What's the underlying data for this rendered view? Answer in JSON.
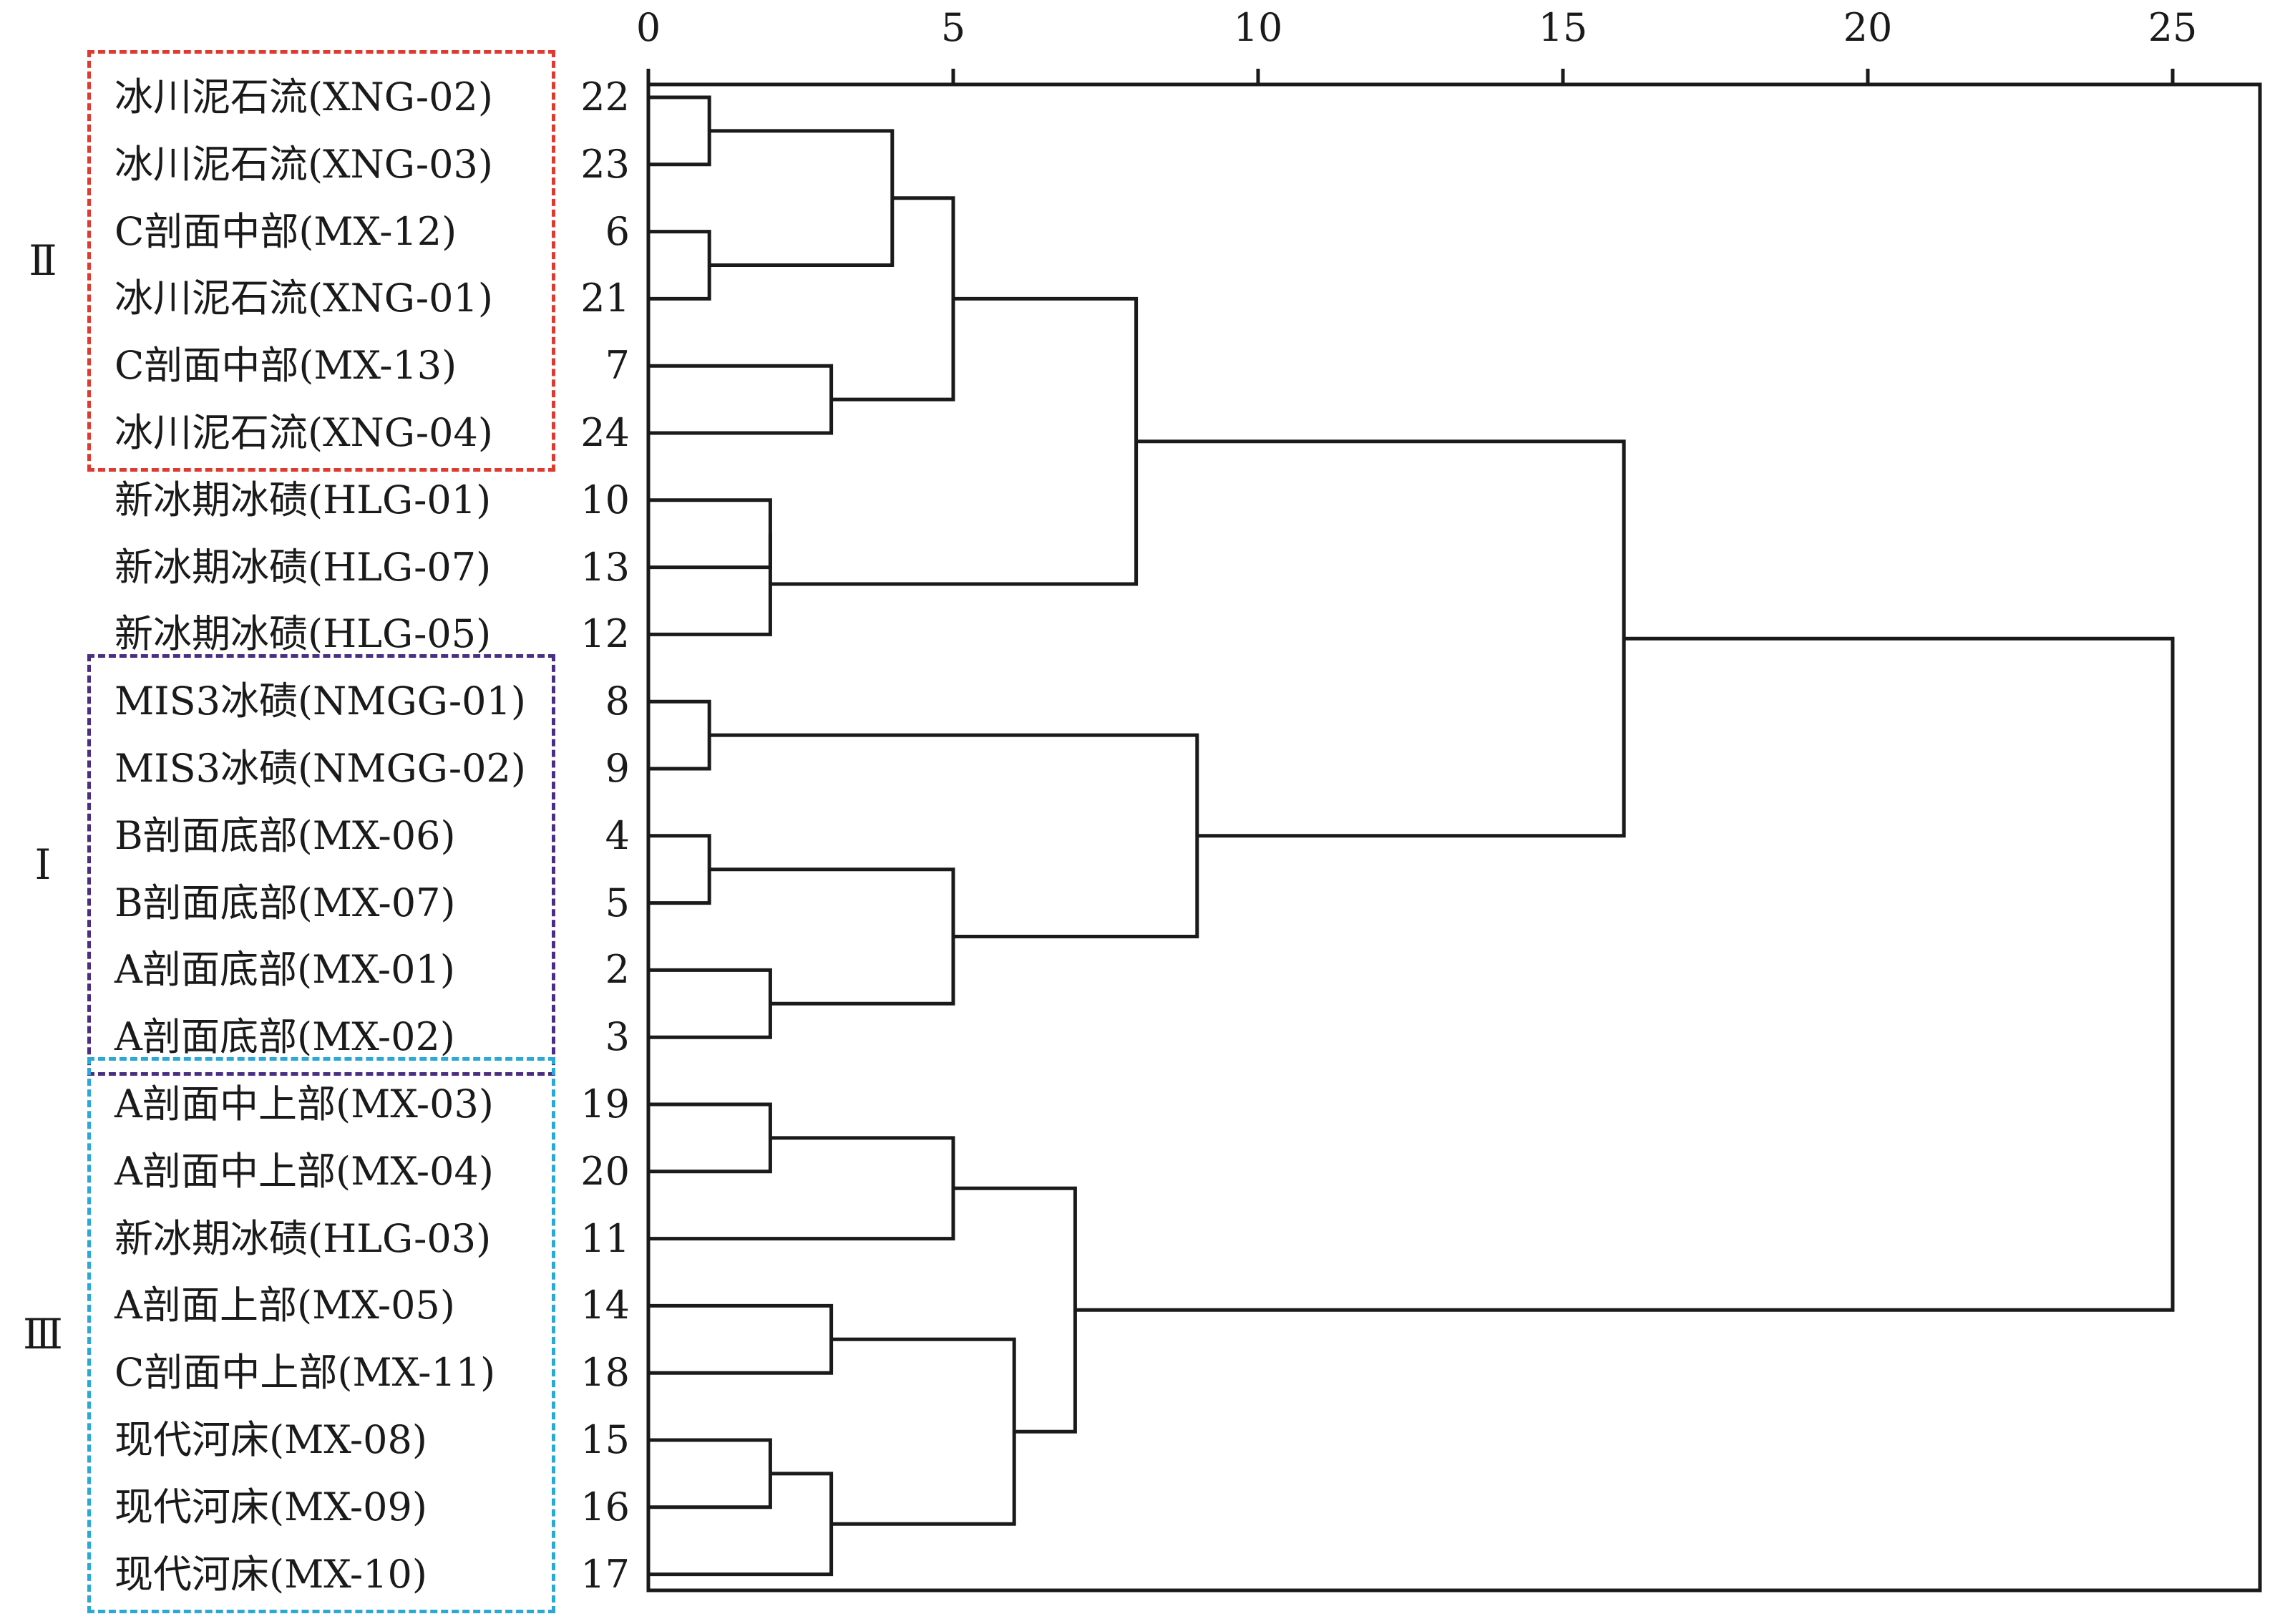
{
  "axis": {
    "ticks": [
      "0",
      "5",
      "10",
      "15",
      "20",
      "25"
    ]
  },
  "groups": [
    {
      "tag": "Ⅱ",
      "color": "#e0392f"
    },
    {
      "tag": "Ⅰ",
      "color": "#4b2e83"
    },
    {
      "tag": "Ⅲ",
      "color": "#2aa8d8"
    }
  ],
  "leaves": [
    {
      "name": "冰川泥石流(XNG-02)",
      "id": "22"
    },
    {
      "name": "冰川泥石流(XNG-03)",
      "id": "23"
    },
    {
      "name": "C剖面中部(MX-12)",
      "id": "6"
    },
    {
      "name": "冰川泥石流(XNG-01)",
      "id": "21"
    },
    {
      "name": "C剖面中部(MX-13)",
      "id": "7"
    },
    {
      "name": "冰川泥石流(XNG-04)",
      "id": "24"
    },
    {
      "name": "新冰期冰碛(HLG-01)",
      "id": "10"
    },
    {
      "name": "新冰期冰碛(HLG-07)",
      "id": "13"
    },
    {
      "name": "新冰期冰碛(HLG-05)",
      "id": "12"
    },
    {
      "name": "MIS3冰碛(NMGG-01)",
      "id": "8"
    },
    {
      "name": "MIS3冰碛(NMGG-02)",
      "id": "9"
    },
    {
      "name": "B剖面底部(MX-06)",
      "id": "4"
    },
    {
      "name": "B剖面底部(MX-07)",
      "id": "5"
    },
    {
      "name": "A剖面底部(MX-01)",
      "id": "2"
    },
    {
      "name": "A剖面底部(MX-02)",
      "id": "3"
    },
    {
      "name": "A剖面中上部(MX-03)",
      "id": "19"
    },
    {
      "name": "A剖面中上部(MX-04)",
      "id": "20"
    },
    {
      "name": "新冰期冰碛(HLG-03)",
      "id": "11"
    },
    {
      "name": "A剖面上部(MX-05)",
      "id": "14"
    },
    {
      "name": "C剖面中上部(MX-11)",
      "id": "18"
    },
    {
      "name": "现代河床(MX-08)",
      "id": "15"
    },
    {
      "name": "现代河床(MX-09)",
      "id": "16"
    },
    {
      "name": "现代河床(MX-10)",
      "id": "17"
    }
  ],
  "merges": [
    {
      "a": "L0",
      "b": "L1",
      "d": 1
    },
    {
      "a": "L2",
      "b": "L3",
      "d": 1
    },
    {
      "a": "M0",
      "b": "M1",
      "d": 4
    },
    {
      "a": "L4",
      "b": "L5",
      "d": 3
    },
    {
      "a": "M2",
      "b": "M3",
      "d": 5
    },
    {
      "a": "L6",
      "b": "L7",
      "d": 2
    },
    {
      "a": "M5",
      "b": "L8",
      "d": 2
    },
    {
      "a": "M4",
      "b": "M6",
      "d": 8
    },
    {
      "a": "L9",
      "b": "L10",
      "d": 1
    },
    {
      "a": "L11",
      "b": "L12",
      "d": 1
    },
    {
      "a": "L13",
      "b": "L14",
      "d": 2
    },
    {
      "a": "M9",
      "b": "M10",
      "d": 5
    },
    {
      "a": "M8",
      "b": "M11",
      "d": 9
    },
    {
      "a": "M7",
      "b": "M12",
      "d": 16
    },
    {
      "a": "L15",
      "b": "L16",
      "d": 2
    },
    {
      "a": "M14",
      "b": "L17",
      "d": 5
    },
    {
      "a": "L18",
      "b": "L19",
      "d": 3
    },
    {
      "a": "L20",
      "b": "L21",
      "d": 2
    },
    {
      "a": "M17",
      "b": "L22",
      "d": 3
    },
    {
      "a": "M16",
      "b": "M18",
      "d": 6
    },
    {
      "a": "M15",
      "b": "M19",
      "d": 7
    },
    {
      "a": "M13",
      "b": "M20",
      "d": 25
    }
  ]
}
